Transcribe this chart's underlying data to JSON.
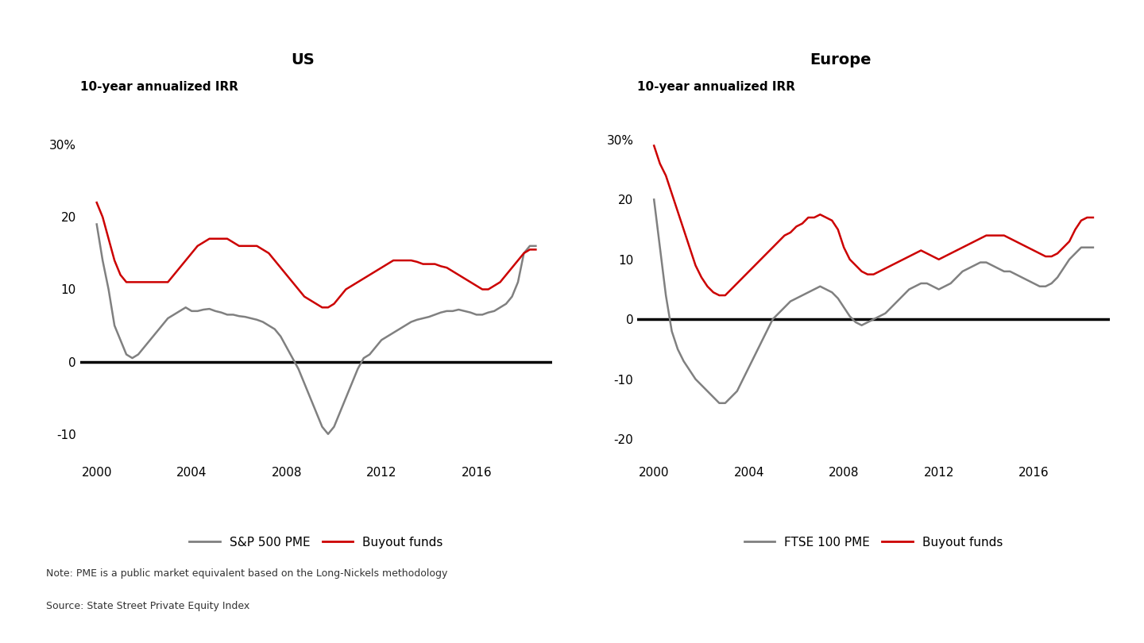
{
  "title_left": "US",
  "title_right": "Europe",
  "ylabel": "10-year annualized IRR",
  "note": "Note: PME is a public market equivalent based on the Long-Nickels methodology",
  "source": "Source: State Street Private Equity Index",
  "legend_left": [
    "S&P 500 PME",
    "Buyout funds"
  ],
  "legend_right": [
    "FTSE 100 PME",
    "Buyout funds"
  ],
  "pme_color": "#808080",
  "buyout_color": "#cc0000",
  "zero_line_color": "#000000",
  "us_ylim": [
    -14,
    34
  ],
  "eu_ylim": [
    -24,
    34
  ],
  "us_yticks": [
    -10,
    0,
    10,
    20,
    30
  ],
  "eu_yticks": [
    -20,
    -10,
    0,
    10,
    20,
    30
  ],
  "us_sp500_x": [
    2000.0,
    2000.25,
    2000.5,
    2000.75,
    2001.0,
    2001.25,
    2001.5,
    2001.75,
    2002.0,
    2002.25,
    2002.5,
    2002.75,
    2003.0,
    2003.25,
    2003.5,
    2003.75,
    2004.0,
    2004.25,
    2004.5,
    2004.75,
    2005.0,
    2005.25,
    2005.5,
    2005.75,
    2006.0,
    2006.25,
    2006.5,
    2006.75,
    2007.0,
    2007.25,
    2007.5,
    2007.75,
    2008.0,
    2008.25,
    2008.5,
    2008.75,
    2009.0,
    2009.25,
    2009.5,
    2009.75,
    2010.0,
    2010.25,
    2010.5,
    2010.75,
    2011.0,
    2011.25,
    2011.5,
    2011.75,
    2012.0,
    2012.25,
    2012.5,
    2012.75,
    2013.0,
    2013.25,
    2013.5,
    2013.75,
    2014.0,
    2014.25,
    2014.5,
    2014.75,
    2015.0,
    2015.25,
    2015.5,
    2015.75,
    2016.0,
    2016.25,
    2016.5,
    2016.75,
    2017.0,
    2017.25,
    2017.5,
    2017.75,
    2018.0,
    2018.25,
    2018.5
  ],
  "us_sp500_y": [
    19,
    14,
    10,
    5,
    3,
    1,
    0.5,
    1,
    2,
    3,
    4,
    5,
    6,
    6.5,
    7,
    7.5,
    7,
    7,
    7.2,
    7.3,
    7,
    6.8,
    6.5,
    6.5,
    6.3,
    6.2,
    6.0,
    5.8,
    5.5,
    5.0,
    4.5,
    3.5,
    2,
    0.5,
    -1,
    -3,
    -5,
    -7,
    -9,
    -10,
    -9,
    -7,
    -5,
    -3,
    -1,
    0.5,
    1,
    2,
    3,
    3.5,
    4,
    4.5,
    5,
    5.5,
    5.8,
    6.0,
    6.2,
    6.5,
    6.8,
    7,
    7,
    7.2,
    7,
    6.8,
    6.5,
    6.5,
    6.8,
    7,
    7.5,
    8,
    9,
    11,
    15,
    16,
    16
  ],
  "us_buyout_x": [
    2000.0,
    2000.25,
    2000.5,
    2000.75,
    2001.0,
    2001.25,
    2001.5,
    2001.75,
    2002.0,
    2002.25,
    2002.5,
    2002.75,
    2003.0,
    2003.25,
    2003.5,
    2003.75,
    2004.0,
    2004.25,
    2004.5,
    2004.75,
    2005.0,
    2005.25,
    2005.5,
    2005.75,
    2006.0,
    2006.25,
    2006.5,
    2006.75,
    2007.0,
    2007.25,
    2007.5,
    2007.75,
    2008.0,
    2008.25,
    2008.5,
    2008.75,
    2009.0,
    2009.25,
    2009.5,
    2009.75,
    2010.0,
    2010.25,
    2010.5,
    2010.75,
    2011.0,
    2011.25,
    2011.5,
    2011.75,
    2012.0,
    2012.25,
    2012.5,
    2012.75,
    2013.0,
    2013.25,
    2013.5,
    2013.75,
    2014.0,
    2014.25,
    2014.5,
    2014.75,
    2015.0,
    2015.25,
    2015.5,
    2015.75,
    2016.0,
    2016.25,
    2016.5,
    2016.75,
    2017.0,
    2017.25,
    2017.5,
    2017.75,
    2018.0,
    2018.25,
    2018.5
  ],
  "us_buyout_y": [
    22,
    20,
    17,
    14,
    12,
    11,
    11,
    11,
    11,
    11,
    11,
    11,
    11,
    12,
    13,
    14,
    15,
    16,
    16.5,
    17,
    17,
    17,
    17,
    16.5,
    16,
    16,
    16,
    16,
    15.5,
    15,
    14,
    13,
    12,
    11,
    10,
    9,
    8.5,
    8,
    7.5,
    7.5,
    8,
    9,
    10,
    10.5,
    11,
    11.5,
    12,
    12.5,
    13,
    13.5,
    14,
    14,
    14,
    14,
    13.8,
    13.5,
    13.5,
    13.5,
    13.2,
    13,
    12.5,
    12,
    11.5,
    11,
    10.5,
    10,
    10,
    10.5,
    11,
    12,
    13,
    14,
    15,
    15.5,
    15.5
  ],
  "eu_ftse_x": [
    2000.0,
    2000.25,
    2000.5,
    2000.75,
    2001.0,
    2001.25,
    2001.5,
    2001.75,
    2002.0,
    2002.25,
    2002.5,
    2002.75,
    2003.0,
    2003.25,
    2003.5,
    2003.75,
    2004.0,
    2004.25,
    2004.5,
    2004.75,
    2005.0,
    2005.25,
    2005.5,
    2005.75,
    2006.0,
    2006.25,
    2006.5,
    2006.75,
    2007.0,
    2007.25,
    2007.5,
    2007.75,
    2008.0,
    2008.25,
    2008.5,
    2008.75,
    2009.0,
    2009.25,
    2009.5,
    2009.75,
    2010.0,
    2010.25,
    2010.5,
    2010.75,
    2011.0,
    2011.25,
    2011.5,
    2011.75,
    2012.0,
    2012.25,
    2012.5,
    2012.75,
    2013.0,
    2013.25,
    2013.5,
    2013.75,
    2014.0,
    2014.25,
    2014.5,
    2014.75,
    2015.0,
    2015.25,
    2015.5,
    2015.75,
    2016.0,
    2016.25,
    2016.5,
    2016.75,
    2017.0,
    2017.25,
    2017.5,
    2017.75,
    2018.0,
    2018.25,
    2018.5
  ],
  "eu_ftse_y": [
    20,
    12,
    4,
    -2,
    -5,
    -7,
    -8.5,
    -10,
    -11,
    -12,
    -13,
    -14,
    -14,
    -13,
    -12,
    -10,
    -8,
    -6,
    -4,
    -2,
    0,
    1,
    2,
    3,
    3.5,
    4,
    4.5,
    5,
    5.5,
    5,
    4.5,
    3.5,
    2,
    0.5,
    -0.5,
    -1,
    -0.5,
    0,
    0.5,
    1,
    2,
    3,
    4,
    5,
    5.5,
    6,
    6,
    5.5,
    5,
    5.5,
    6,
    7,
    8,
    8.5,
    9,
    9.5,
    9.5,
    9,
    8.5,
    8,
    8,
    7.5,
    7,
    6.5,
    6,
    5.5,
    5.5,
    6,
    7,
    8.5,
    10,
    11,
    12,
    12,
    12
  ],
  "eu_buyout_x": [
    2000.0,
    2000.25,
    2000.5,
    2000.75,
    2001.0,
    2001.25,
    2001.5,
    2001.75,
    2002.0,
    2002.25,
    2002.5,
    2002.75,
    2003.0,
    2003.25,
    2003.5,
    2003.75,
    2004.0,
    2004.25,
    2004.5,
    2004.75,
    2005.0,
    2005.25,
    2005.5,
    2005.75,
    2006.0,
    2006.25,
    2006.5,
    2006.75,
    2007.0,
    2007.25,
    2007.5,
    2007.75,
    2008.0,
    2008.25,
    2008.5,
    2008.75,
    2009.0,
    2009.25,
    2009.5,
    2009.75,
    2010.0,
    2010.25,
    2010.5,
    2010.75,
    2011.0,
    2011.25,
    2011.5,
    2011.75,
    2012.0,
    2012.25,
    2012.5,
    2012.75,
    2013.0,
    2013.25,
    2013.5,
    2013.75,
    2014.0,
    2014.25,
    2014.5,
    2014.75,
    2015.0,
    2015.25,
    2015.5,
    2015.75,
    2016.0,
    2016.25,
    2016.5,
    2016.75,
    2017.0,
    2017.25,
    2017.5,
    2017.75,
    2018.0,
    2018.25,
    2018.5
  ],
  "eu_buyout_y": [
    29,
    26,
    24,
    21,
    18,
    15,
    12,
    9,
    7,
    5.5,
    4.5,
    4,
    4,
    5,
    6,
    7,
    8,
    9,
    10,
    11,
    12,
    13,
    14,
    14.5,
    15.5,
    16,
    17,
    17,
    17.5,
    17,
    16.5,
    15,
    12,
    10,
    9,
    8,
    7.5,
    7.5,
    8,
    8.5,
    9,
    9.5,
    10,
    10.5,
    11,
    11.5,
    11,
    10.5,
    10,
    10.5,
    11,
    11.5,
    12,
    12.5,
    13,
    13.5,
    14,
    14,
    14,
    14,
    13.5,
    13,
    12.5,
    12,
    11.5,
    11,
    10.5,
    10.5,
    11,
    12,
    13,
    15,
    16.5,
    17,
    17
  ]
}
